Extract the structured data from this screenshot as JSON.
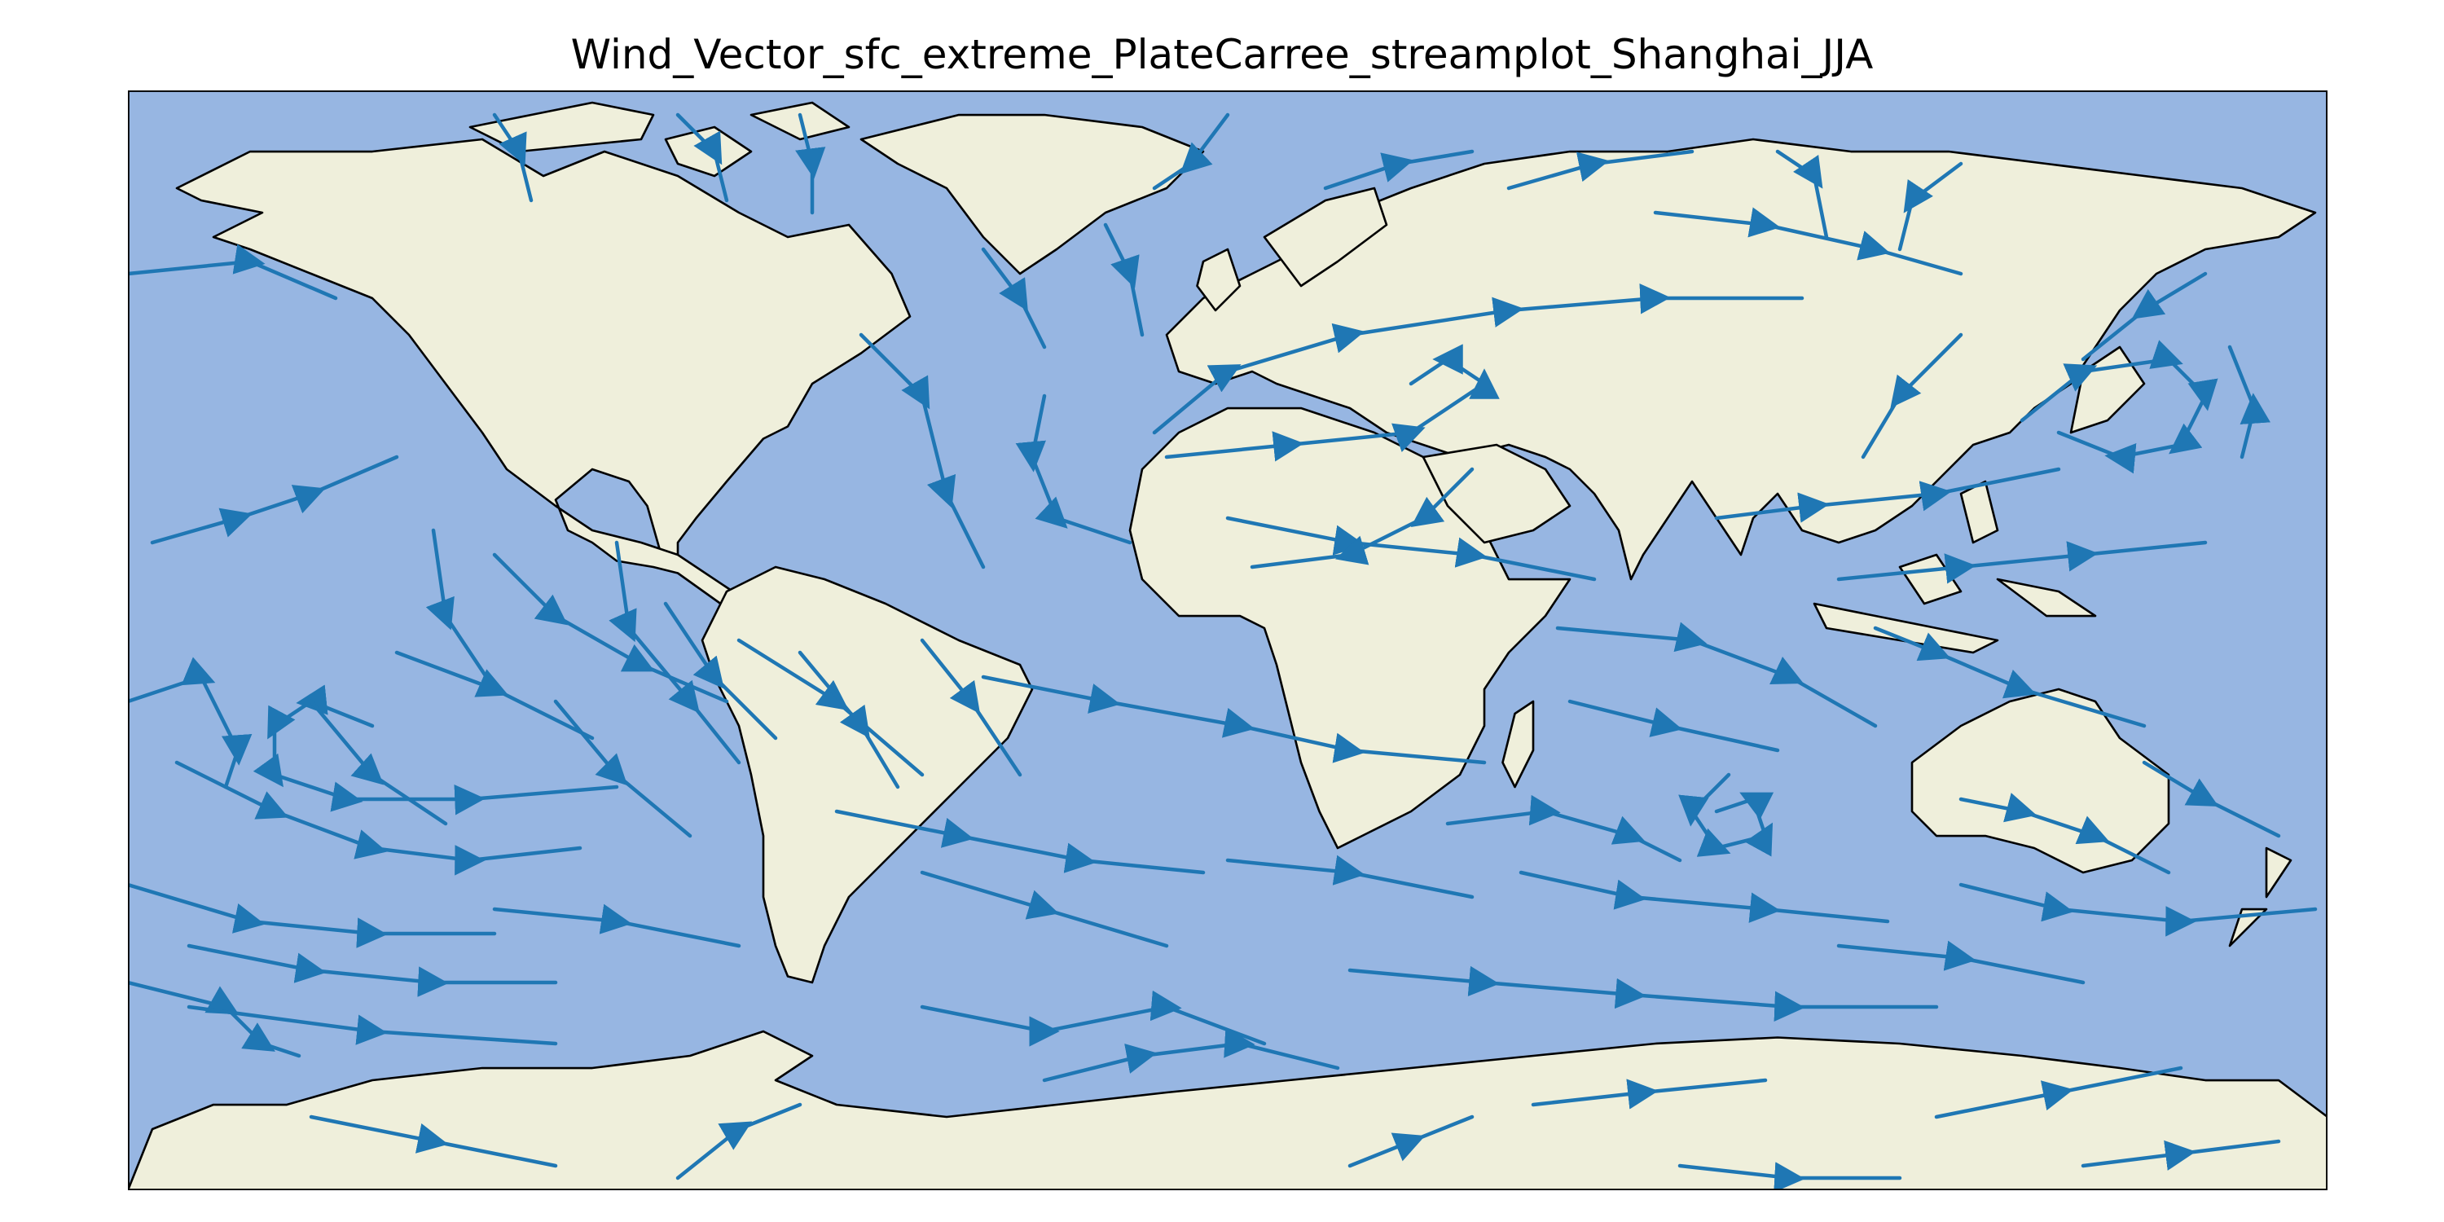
{
  "figure": {
    "title": "Wind_Vector_sfc_extreme_PlateCarree_streamplot_Shanghai_JJA"
  },
  "map": {
    "projection": "PlateCarree",
    "plot_type": "streamplot",
    "extent": {
      "lon": [
        -180,
        180
      ],
      "lat": [
        -90,
        90
      ]
    },
    "colors": {
      "ocean": "#97b6e2",
      "land": "#efefdb",
      "coastline": "#000000",
      "streamline": "#1f77b4",
      "frame": "#000000"
    }
  }
}
